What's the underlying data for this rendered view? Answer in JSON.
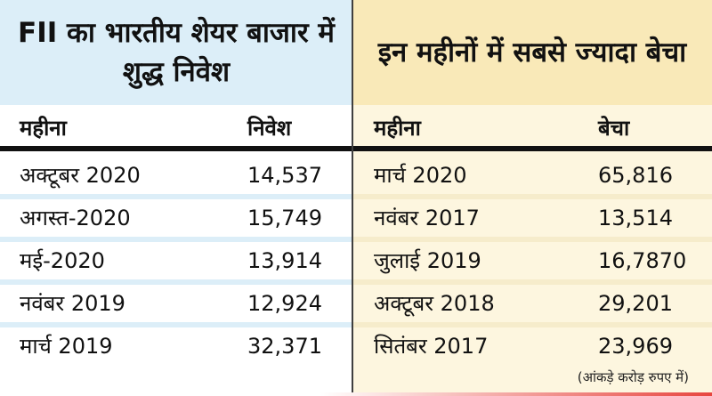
{
  "left": {
    "title": "FII का भारतीय शेयर बाजार में शुद्ध निवेश",
    "columns": {
      "month": "महीना",
      "value": "निवेश"
    },
    "rows": [
      {
        "month": "अक्टूबर 2020",
        "value": "14,537"
      },
      {
        "month": "अगस्त-2020",
        "value": "15,749"
      },
      {
        "month": "मई-2020",
        "value": "13,914"
      },
      {
        "month": "नवंबर 2019",
        "value": "12,924"
      },
      {
        "month": "मार्च 2019",
        "value": "32,371"
      }
    ]
  },
  "right": {
    "title": "इन महीनों में सबसे ज्यादा बेचा",
    "columns": {
      "month": "महीना",
      "value": "बेचा"
    },
    "rows": [
      {
        "month": "मार्च 2020",
        "value": "65,816"
      },
      {
        "month": "नवंबर 2017",
        "value": "13,514"
      },
      {
        "month": "जुलाई 2019",
        "value": "16,7870"
      },
      {
        "month": "अक्टूबर 2018",
        "value": "29,201"
      },
      {
        "month": "सितंबर 2017",
        "value": "23,969"
      }
    ],
    "note": "(आंकड़े करोड़ रुपए में)"
  },
  "colors": {
    "left_header_bg": "#dceef8",
    "right_header_bg": "#f9e9b8",
    "right_body_bg": "#fdf6df",
    "accent_red": "#e7463f"
  }
}
